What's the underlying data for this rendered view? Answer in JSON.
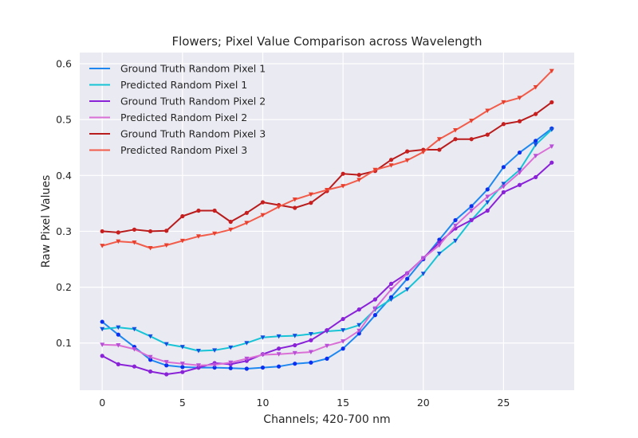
{
  "chart_data": {
    "type": "line",
    "title": "Flowers; Pixel Value Comparison across Wavelength",
    "xlabel": "Channels; 420-700 nm",
    "ylabel": "Raw Pixel Values",
    "xlim": [
      -1.4,
      29.4
    ],
    "ylim": [
      0.0155,
      0.62
    ],
    "xticks": [
      0,
      5,
      10,
      15,
      20,
      25
    ],
    "yticks": [
      0.1,
      0.2,
      0.3,
      0.4,
      0.5,
      0.6
    ],
    "xtick_labels": [
      "0",
      "5",
      "10",
      "15",
      "20",
      "25"
    ],
    "ytick_labels": [
      "0.1",
      "0.2",
      "0.3",
      "0.4",
      "0.5",
      "0.6"
    ],
    "grid": true,
    "background": "#eaeaf2",
    "legend_position": "upper-left",
    "x": [
      0,
      1,
      2,
      3,
      4,
      5,
      6,
      7,
      8,
      9,
      10,
      11,
      12,
      13,
      14,
      15,
      16,
      17,
      18,
      19,
      20,
      21,
      22,
      23,
      24,
      25,
      26,
      27,
      28
    ],
    "series": [
      {
        "name": "Ground Truth Random Pixel 1",
        "color": "#1e88f0",
        "marker_color": "#0b2ff0",
        "marker": "circle",
        "values": [
          0.138,
          0.115,
          0.093,
          0.07,
          0.06,
          0.057,
          0.056,
          0.056,
          0.055,
          0.054,
          0.056,
          0.058,
          0.063,
          0.065,
          0.072,
          0.09,
          0.117,
          0.15,
          0.182,
          0.215,
          0.25,
          0.285,
          0.32,
          0.345,
          0.375,
          0.415,
          0.441,
          0.462,
          0.484
        ]
      },
      {
        "name": "Predicted Random Pixel 1",
        "color": "#17c4d6",
        "marker_color": "#1450e0",
        "marker": "triangle",
        "values": [
          0.125,
          0.128,
          0.125,
          0.112,
          0.098,
          0.093,
          0.086,
          0.087,
          0.092,
          0.1,
          0.11,
          0.112,
          0.113,
          0.116,
          0.121,
          0.123,
          0.132,
          0.16,
          0.178,
          0.196,
          0.224,
          0.26,
          0.283,
          0.32,
          0.352,
          0.385,
          0.41,
          0.455,
          0.482
        ]
      },
      {
        "name": "Ground Truth Random Pixel 2",
        "color": "#8a22d8",
        "marker_color": "#8a22d8",
        "marker": "circle",
        "values": [
          0.077,
          0.062,
          0.058,
          0.049,
          0.044,
          0.048,
          0.056,
          0.064,
          0.062,
          0.068,
          0.08,
          0.09,
          0.096,
          0.105,
          0.123,
          0.143,
          0.16,
          0.178,
          0.206,
          0.225,
          0.252,
          0.28,
          0.305,
          0.32,
          0.337,
          0.37,
          0.383,
          0.397,
          0.423
        ]
      },
      {
        "name": "Predicted Random Pixel 2",
        "color": "#da70d6",
        "marker_color": "#b84fd8",
        "marker": "triangle",
        "values": [
          0.097,
          0.096,
          0.089,
          0.075,
          0.066,
          0.063,
          0.06,
          0.061,
          0.065,
          0.072,
          0.079,
          0.08,
          0.082,
          0.084,
          0.095,
          0.103,
          0.122,
          0.162,
          0.196,
          0.224,
          0.252,
          0.275,
          0.31,
          0.337,
          0.362,
          0.38,
          0.405,
          0.435,
          0.452
        ]
      },
      {
        "name": "Ground Truth Random Pixel 3",
        "color": "#b81c1c",
        "marker_color": "#c81e1e",
        "marker": "circle",
        "values": [
          0.3,
          0.298,
          0.303,
          0.3,
          0.301,
          0.327,
          0.337,
          0.337,
          0.317,
          0.333,
          0.352,
          0.347,
          0.342,
          0.351,
          0.372,
          0.403,
          0.401,
          0.408,
          0.428,
          0.443,
          0.446,
          0.446,
          0.465,
          0.465,
          0.473,
          0.492,
          0.497,
          0.51,
          0.531
        ]
      },
      {
        "name": "Predicted Random Pixel 3",
        "color": "#f25c4a",
        "marker_color": "#e8402e",
        "marker": "triangle",
        "values": [
          0.274,
          0.282,
          0.28,
          0.27,
          0.275,
          0.283,
          0.291,
          0.296,
          0.303,
          0.315,
          0.329,
          0.344,
          0.357,
          0.366,
          0.374,
          0.381,
          0.392,
          0.41,
          0.418,
          0.427,
          0.442,
          0.465,
          0.481,
          0.498,
          0.516,
          0.531,
          0.539,
          0.558,
          0.587
        ]
      }
    ]
  }
}
